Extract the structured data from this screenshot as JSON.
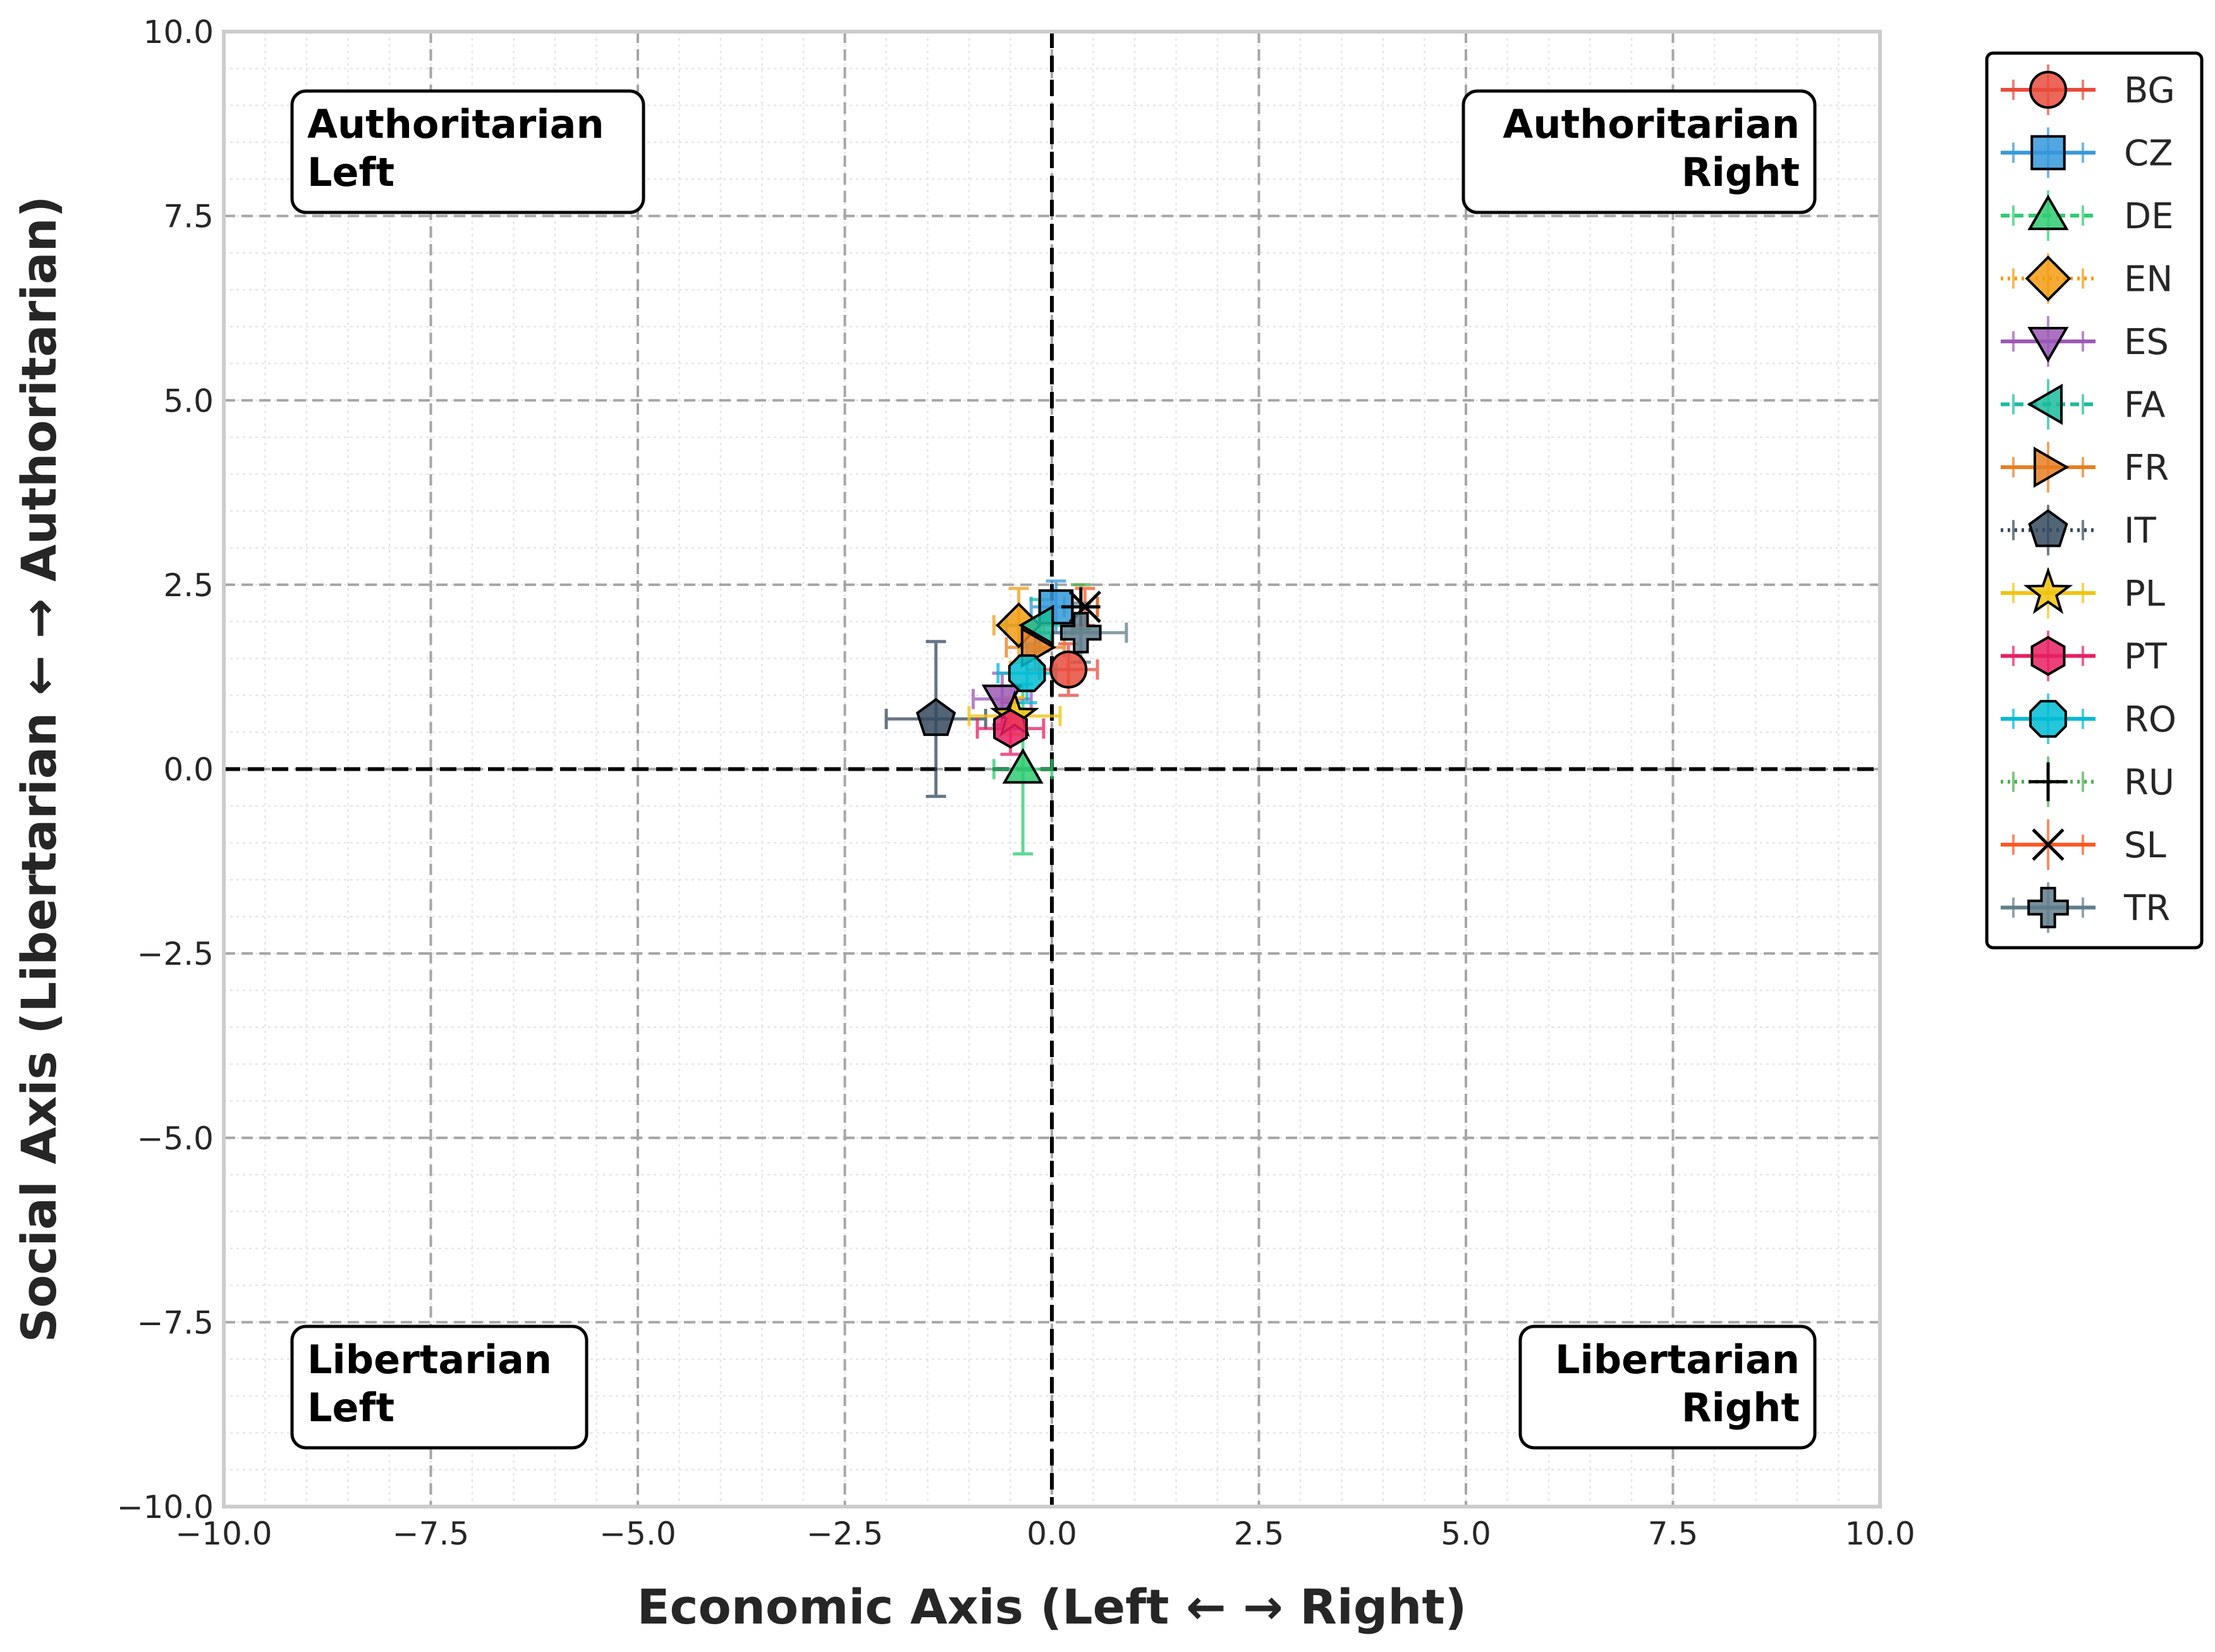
{
  "chart_data": {
    "type": "scatter",
    "title": "",
    "xlabel": "Economic Axis (Left ← → Right)",
    "ylabel": "Social Axis (Libertarian ← → Authoritarian)",
    "xlim": [
      -10,
      10
    ],
    "ylim": [
      -10,
      10
    ],
    "xticks": [
      -10,
      -7.5,
      -5,
      -2.5,
      0,
      2.5,
      5,
      7.5,
      10
    ],
    "yticks": [
      -10,
      -7.5,
      -5,
      -2.5,
      0,
      2.5,
      5,
      7.5,
      10
    ],
    "xtick_labels": [
      "−10.0",
      "−7.5",
      "−5.0",
      "−2.5",
      "0.0",
      "2.5",
      "5.0",
      "7.5",
      "10.0"
    ],
    "ytick_labels": [
      "−10.0",
      "−7.5",
      "−5.0",
      "−2.5",
      "0.0",
      "2.5",
      "5.0",
      "7.5",
      "10.0"
    ],
    "grid": true,
    "legend_position": "outside-top-right",
    "quadrants": [
      {
        "name": "authoritarian-left",
        "line1": "Authoritarian",
        "line2": "Left",
        "align": "left",
        "corner": "top-left"
      },
      {
        "name": "authoritarian-right",
        "line1": "Authoritarian",
        "line2": "Right",
        "align": "right",
        "corner": "top-right"
      },
      {
        "name": "libertarian-left",
        "line1": "Libertarian",
        "line2": "Left",
        "align": "left",
        "corner": "bottom-left"
      },
      {
        "name": "libertarian-right",
        "line1": "Libertarian",
        "line2": "Right",
        "align": "right",
        "corner": "bottom-right"
      }
    ],
    "series": [
      {
        "name": "BG",
        "marker": "circle",
        "color": "#e74c3c",
        "linestyle": "solid",
        "x": 0.2,
        "y": 1.35,
        "xerr": 0.35,
        "yerr": 0.35
      },
      {
        "name": "CZ",
        "marker": "square",
        "color": "#3498db",
        "linestyle": "solid",
        "x": 0.05,
        "y": 2.2,
        "xerr": 0.3,
        "yerr": 0.35
      },
      {
        "name": "DE",
        "marker": "triangle-up",
        "color": "#2ecc71",
        "linestyle": "dashed",
        "x": -0.35,
        "y": 0.0,
        "xerr": 0.35,
        "yerr": 1.15
      },
      {
        "name": "EN",
        "marker": "diamond",
        "color": "#f39c12",
        "linestyle": "dotted",
        "x": -0.4,
        "y": 1.95,
        "xerr": 0.3,
        "yerr": 0.5
      },
      {
        "name": "ES",
        "marker": "triangle-down",
        "color": "#9b59b6",
        "linestyle": "solid",
        "x": -0.6,
        "y": 0.95,
        "xerr": 0.35,
        "yerr": 0.35
      },
      {
        "name": "FA",
        "marker": "triangle-left",
        "color": "#1abc9c",
        "linestyle": "dashed",
        "x": -0.15,
        "y": 1.95,
        "xerr": 0.4,
        "yerr": 0.35
      },
      {
        "name": "FR",
        "marker": "triangle-right",
        "color": "#e67e22",
        "linestyle": "solid",
        "x": -0.2,
        "y": 1.65,
        "xerr": 0.35,
        "yerr": 0.3
      },
      {
        "name": "IT",
        "marker": "pentagon",
        "color": "#34495e",
        "linestyle": "dotted",
        "x": -1.4,
        "y": 0.68,
        "xerr": 0.6,
        "yerr": 1.05
      },
      {
        "name": "PL",
        "marker": "star",
        "color": "#f1c40f",
        "linestyle": "solid",
        "x": -0.45,
        "y": 0.72,
        "xerr": 0.55,
        "yerr": 0.25
      },
      {
        "name": "PT",
        "marker": "hexagon",
        "color": "#e91e63",
        "linestyle": "solid",
        "x": -0.5,
        "y": 0.55,
        "xerr": 0.4,
        "yerr": 0.35
      },
      {
        "name": "RO",
        "marker": "octagon",
        "color": "#00bcd4",
        "linestyle": "solid",
        "x": -0.3,
        "y": 1.3,
        "xerr": 0.35,
        "yerr": 0.4
      },
      {
        "name": "RU",
        "marker": "plus",
        "color": "#4caf50",
        "linestyle": "dotted",
        "x": 0.35,
        "y": 2.2,
        "xerr": 0.2,
        "yerr": 0.3
      },
      {
        "name": "SL",
        "marker": "x",
        "color": "#ff5722",
        "linestyle": "solid",
        "x": 0.4,
        "y": 2.2,
        "xerr": 0.15,
        "yerr": 0.25
      },
      {
        "name": "TR",
        "marker": "plus-filled",
        "color": "#607d8b",
        "linestyle": "solid",
        "x": 0.35,
        "y": 1.85,
        "xerr": 0.55,
        "yerr": 0.4
      }
    ]
  }
}
